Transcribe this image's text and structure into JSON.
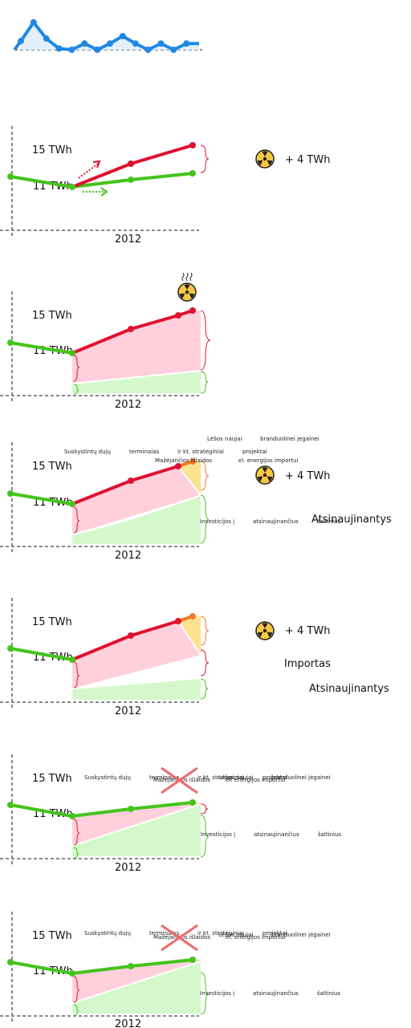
{
  "units": {
    "twh15": "15 TWh",
    "twh11": "11 TWh"
  },
  "year": "2012",
  "nuclear_plus": "+ 4 TWh",
  "importas": "Importas",
  "atsinaujinantys": "Atsinaujinantys",
  "lng_labels": [
    "Suskystintų dujų",
    "terminalas",
    "ir kt. strateginiai",
    "projektai"
  ],
  "savings_labels": [
    "Mažėjančios išlaidos",
    "el. energijos importui"
  ],
  "nuclear_cheap_labels": [
    "Lėšos naujai",
    "branduolinei jėgainei"
  ],
  "renewable_labels": [
    "Investicijos į",
    "atsinaujinančius",
    "šaltinius"
  ],
  "colors": {
    "red": "#e0102f",
    "green": "#44c41a",
    "blue": "#1e88e5",
    "pink": "#ffd0dc",
    "lightgreen": "#d4f8cc",
    "yellow": "#fde390",
    "orange": "#ef7a2a",
    "axis": "#888888"
  },
  "top_chart_points": [
    2.2,
    3.7,
    2.4,
    1.6,
    1.5,
    2.0,
    1.4,
    2.0,
    2.6,
    2.0,
    1.5,
    2.0,
    1.5,
    2.0,
    2.0
  ]
}
